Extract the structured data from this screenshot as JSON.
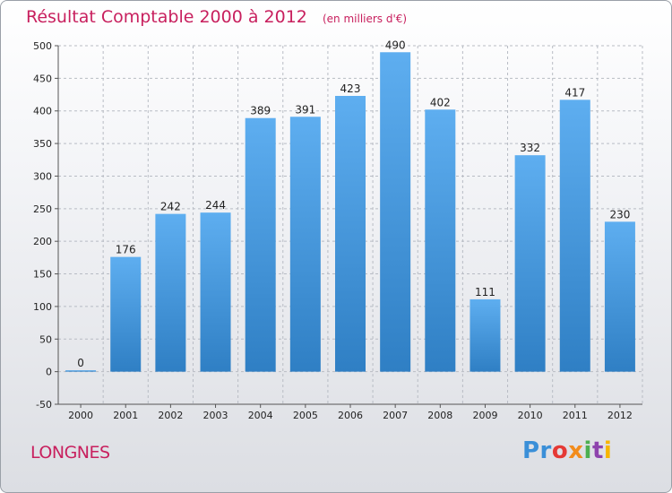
{
  "chart_data": {
    "type": "bar",
    "title": "Résultat Comptable 2000 à 2012",
    "unit": "(en milliers d'€)",
    "categories": [
      "2000",
      "2001",
      "2002",
      "2003",
      "2004",
      "2005",
      "2006",
      "2007",
      "2008",
      "2009",
      "2010",
      "2011",
      "2012"
    ],
    "values": [
      0,
      176,
      242,
      244,
      389,
      391,
      423,
      490,
      402,
      111,
      332,
      417,
      230
    ],
    "ylim": [
      -50,
      500
    ],
    "yticks": [
      -50,
      0,
      50,
      100,
      150,
      200,
      250,
      300,
      350,
      400,
      450,
      500
    ],
    "xlabel": "",
    "ylabel": "",
    "grid": true,
    "colors": {
      "bar_top": "#5eaef0",
      "bar_bottom": "#2f7fc4",
      "grid": "#b8bcc4",
      "title": "#c8205e"
    }
  },
  "commune": "LONGNES",
  "logo": {
    "parts": [
      "Pr",
      "o",
      "x",
      "i",
      "t",
      "i"
    ],
    "brand": "Proxiti"
  }
}
